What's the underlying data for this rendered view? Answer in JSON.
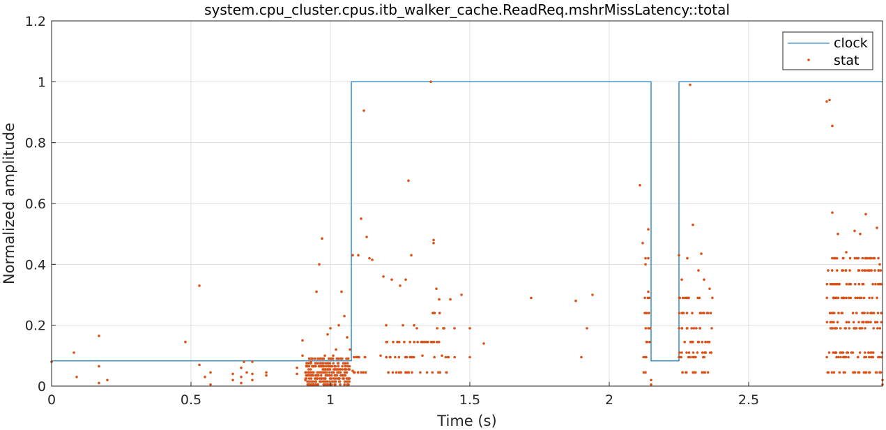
{
  "chart_data": {
    "type": "line",
    "title": "system.cpu_cluster.cpus.itb_walker_cache.ReadReq.mshrMissLatency::total",
    "xlabel": "Time (s)",
    "ylabel": "Normalized amplitude",
    "xlim": [
      0,
      2.98
    ],
    "ylim": [
      0,
      1.2
    ],
    "xticks": [
      0,
      0.5,
      1,
      1.5,
      2,
      2.5
    ],
    "xtick_labels": [
      "0",
      "0.5",
      "1",
      "1.5",
      "2",
      "2.5"
    ],
    "yticks": [
      0,
      0.2,
      0.4,
      0.6,
      0.8,
      1,
      1.2
    ],
    "ytick_labels": [
      "0",
      "0.2",
      "0.4",
      "0.6",
      "0.8",
      "1",
      "1.2"
    ],
    "grid": true,
    "legend_position": "top-right",
    "colors": {
      "clock": "#0072BD",
      "stat": "#D95319",
      "grid": "#dfdfdf",
      "axis": "#262626"
    },
    "series": [
      {
        "name": "clock",
        "style": "step-line",
        "x": [
          0,
          1.075,
          1.075,
          2.15,
          2.15,
          2.25,
          2.25,
          2.98
        ],
        "y": [
          0.083,
          0.083,
          1,
          1,
          0.083,
          0.083,
          1,
          1
        ]
      },
      {
        "name": "stat",
        "style": "dots",
        "points": [
          [
            0.0,
            0.08
          ],
          [
            0.08,
            0.11
          ],
          [
            0.09,
            0.03
          ],
          [
            0.17,
            0.165
          ],
          [
            0.17,
            0.065
          ],
          [
            0.17,
            0.01
          ],
          [
            0.2,
            0.02
          ],
          [
            0.48,
            0.145
          ],
          [
            0.53,
            0.33
          ],
          [
            0.53,
            0.07
          ],
          [
            0.55,
            0.03
          ],
          [
            0.57,
            0.045
          ],
          [
            0.57,
            0.005
          ],
          [
            0.65,
            0.04
          ],
          [
            0.65,
            0.02
          ],
          [
            0.68,
            0.06
          ],
          [
            0.68,
            0.03
          ],
          [
            0.68,
            0.01
          ],
          [
            0.69,
            0.08
          ],
          [
            0.7,
            0.045
          ],
          [
            0.72,
            0.08
          ],
          [
            0.72,
            0.04
          ],
          [
            0.72,
            0.02
          ],
          [
            0.77,
            0.045
          ],
          [
            0.77,
            0.035
          ],
          [
            0.88,
            0.06
          ],
          [
            0.88,
            0.04
          ],
          [
            0.9,
            0.15
          ],
          [
            0.9,
            0.1
          ],
          [
            0.91,
            0.02
          ],
          [
            0.93,
            0.08
          ],
          [
            0.95,
            0.31
          ],
          [
            0.96,
            0.4
          ],
          [
            0.97,
            0.485
          ],
          [
            0.98,
            0.1
          ],
          [
            0.99,
            0.17
          ],
          [
            1.0,
            0.19
          ],
          [
            1.01,
            0.1
          ],
          [
            1.02,
            0.12
          ],
          [
            1.03,
            0.2
          ],
          [
            1.04,
            0.31
          ],
          [
            1.05,
            0.23
          ],
          [
            1.06,
            0.16
          ],
          [
            1.07,
            0.12
          ],
          [
            1.08,
            0.43
          ],
          [
            1.08,
            0.05
          ],
          [
            1.1,
            0.43
          ],
          [
            1.11,
            0.55
          ],
          [
            1.12,
            0.905
          ],
          [
            1.13,
            0.49
          ],
          [
            1.14,
            0.42
          ],
          [
            1.15,
            0.415
          ],
          [
            1.18,
            0.1
          ],
          [
            1.19,
            0.36
          ],
          [
            1.2,
            0.2
          ],
          [
            1.22,
            0.35
          ],
          [
            1.24,
            0.145
          ],
          [
            1.25,
            0.33
          ],
          [
            1.26,
            0.2
          ],
          [
            1.27,
            0.35
          ],
          [
            1.28,
            0.675
          ],
          [
            1.29,
            0.43
          ],
          [
            1.3,
            0.2
          ],
          [
            1.31,
            0.19
          ],
          [
            1.33,
            0.1
          ],
          [
            1.36,
            1.0
          ],
          [
            1.37,
            0.48
          ],
          [
            1.37,
            0.47
          ],
          [
            1.38,
            0.32
          ],
          [
            1.39,
            0.285
          ],
          [
            1.4,
            0.1
          ],
          [
            1.43,
            0.285
          ],
          [
            1.47,
            0.3
          ],
          [
            1.5,
            0.19
          ],
          [
            1.5,
            0.095
          ],
          [
            1.55,
            0.14
          ],
          [
            1.72,
            0.29
          ],
          [
            1.88,
            0.28
          ],
          [
            1.9,
            0.095
          ],
          [
            1.92,
            0.19
          ],
          [
            1.94,
            0.3
          ],
          [
            2.11,
            0.66
          ],
          [
            2.12,
            0.47
          ],
          [
            2.13,
            0.4
          ],
          [
            2.13,
            0.42
          ],
          [
            2.14,
            0.515
          ],
          [
            2.14,
            0.42
          ],
          [
            2.14,
            0.31
          ],
          [
            2.15,
            0.02
          ],
          [
            2.15,
            0.005
          ],
          [
            2.25,
            0.43
          ],
          [
            2.26,
            0.35
          ],
          [
            2.28,
            0.42
          ],
          [
            2.29,
            0.99
          ],
          [
            2.3,
            0.53
          ],
          [
            2.32,
            0.38
          ],
          [
            2.33,
            0.435
          ],
          [
            2.34,
            0.35
          ],
          [
            2.36,
            0.32
          ],
          [
            2.78,
            0.935
          ],
          [
            2.79,
            0.94
          ],
          [
            2.8,
            0.855
          ],
          [
            2.8,
            0.57
          ],
          [
            2.82,
            0.5
          ],
          [
            2.85,
            0.44
          ],
          [
            2.88,
            0.51
          ],
          [
            2.9,
            0.5
          ],
          [
            2.92,
            0.565
          ],
          [
            2.96,
            0.52
          ],
          [
            2.97,
            0.4
          ],
          [
            2.98,
            0.02
          ],
          [
            2.98,
            0.005
          ]
        ],
        "bands": [
          {
            "x_from": 0.91,
            "x_to": 1.07,
            "y": [
              0.005,
              0.015,
              0.025,
              0.035,
              0.045,
              0.055,
              0.065,
              0.075,
              0.09
            ],
            "count_per_y": 32
          },
          {
            "x_from": 1.08,
            "x_to": 1.13,
            "y": [
              0.045,
              0.095
            ],
            "count_per_y": 8
          },
          {
            "x_from": 1.2,
            "x_to": 1.35,
            "y": [
              0.045,
              0.095,
              0.145
            ],
            "count_per_y": 14
          },
          {
            "x_from": 1.36,
            "x_to": 1.45,
            "y": [
              0.045,
              0.095,
              0.145,
              0.19,
              0.24
            ],
            "count_per_y": 5
          },
          {
            "x_from": 2.12,
            "x_to": 2.15,
            "y": [
              0.045,
              0.095,
              0.145,
              0.19,
              0.24,
              0.29
            ],
            "count_per_y": 3
          },
          {
            "x_from": 2.25,
            "x_to": 2.37,
            "y": [
              0.045,
              0.095,
              0.11,
              0.145,
              0.19,
              0.24,
              0.29
            ],
            "count_per_y": 12
          },
          {
            "x_from": 2.78,
            "x_to": 2.98,
            "y": [
              0.045,
              0.095,
              0.11,
              0.19,
              0.21,
              0.24,
              0.29,
              0.335,
              0.38,
              0.42
            ],
            "count_per_y": 22
          }
        ]
      }
    ]
  }
}
